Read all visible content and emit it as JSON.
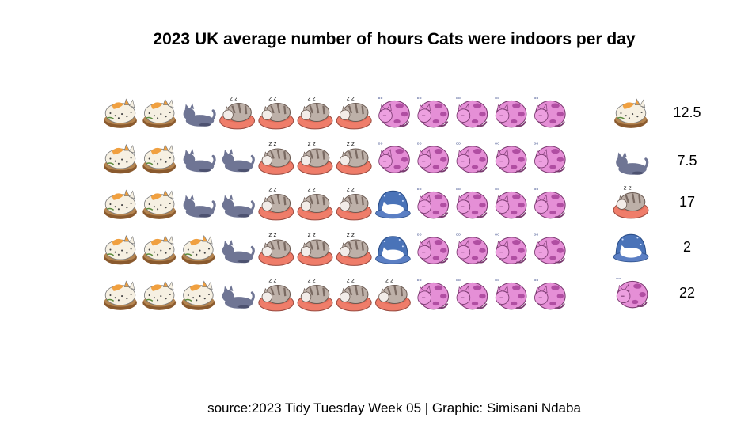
{
  "title": "2023 UK average number of hours Cats were indoors per day",
  "caption": "source:2023 Tidy Tuesday Week 05 | Graphic: Simisani Ndaba",
  "chart_data": {
    "type": "pictogram",
    "title": "2023 UK average number of hours Cats were indoors per day",
    "categories": [
      "cat-loaf",
      "cat-lying",
      "cat-bed-sleeping",
      "cat-dome",
      "cat-curled-purple"
    ],
    "legend": [
      {
        "icon": "cat-loaf",
        "value": "12.5"
      },
      {
        "icon": "cat-lying",
        "value": "7.5"
      },
      {
        "icon": "cat-bed-sleeping",
        "value": "17"
      },
      {
        "icon": "cat-dome",
        "value": "2"
      },
      {
        "icon": "cat-curled-purple",
        "value": "22"
      }
    ],
    "rows": [
      [
        "cat-loaf",
        "cat-loaf",
        "cat-lying",
        "cat-bed-sleeping",
        "cat-bed-sleeping",
        "cat-bed-sleeping",
        "cat-bed-sleeping",
        "cat-curled-purple",
        "cat-curled-purple",
        "cat-curled-purple",
        "cat-curled-purple",
        "cat-curled-purple"
      ],
      [
        "cat-loaf",
        "cat-loaf",
        "cat-lying",
        "cat-lying",
        "cat-bed-sleeping",
        "cat-bed-sleeping",
        "cat-bed-sleeping",
        "cat-curled-purple",
        "cat-curled-purple",
        "cat-curled-purple",
        "cat-curled-purple",
        "cat-curled-purple"
      ],
      [
        "cat-loaf",
        "cat-loaf",
        "cat-lying",
        "cat-lying",
        "cat-bed-sleeping",
        "cat-bed-sleeping",
        "cat-bed-sleeping",
        "cat-dome",
        "cat-curled-purple",
        "cat-curled-purple",
        "cat-curled-purple",
        "cat-curled-purple"
      ],
      [
        "cat-loaf",
        "cat-loaf",
        "cat-loaf",
        "cat-lying",
        "cat-bed-sleeping",
        "cat-bed-sleeping",
        "cat-bed-sleeping",
        "cat-dome",
        "cat-curled-purple",
        "cat-curled-purple",
        "cat-curled-purple",
        "cat-curled-purple"
      ],
      [
        "cat-loaf",
        "cat-loaf",
        "cat-loaf",
        "cat-lying",
        "cat-bed-sleeping",
        "cat-bed-sleeping",
        "cat-bed-sleeping",
        "cat-bed-sleeping",
        "cat-curled-purple",
        "cat-curled-purple",
        "cat-curled-purple",
        "cat-curled-purple"
      ]
    ],
    "colors": {
      "loaf_body": "#f6f0e2",
      "loaf_base": "#8a5a2e",
      "loaf_patch": "#f0a040",
      "lying_body": "#6f7594",
      "bed_cushion": "#ef7d6a",
      "bed_cat": "#bdb0a8",
      "bed_stripe": "#7a6a62",
      "dome": "#4a73b8",
      "purple_body": "#e58fd6",
      "purple_spot": "#b04ea2"
    }
  }
}
